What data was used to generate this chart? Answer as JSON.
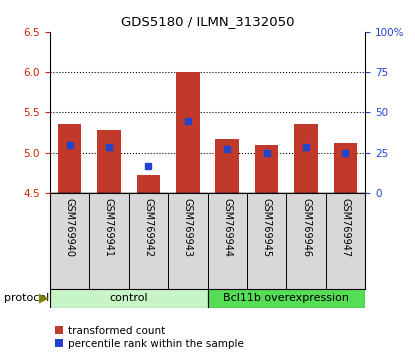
{
  "title": "GDS5180 / ILMN_3132050",
  "samples": [
    "GSM769940",
    "GSM769941",
    "GSM769942",
    "GSM769943",
    "GSM769944",
    "GSM769945",
    "GSM769946",
    "GSM769947"
  ],
  "red_values": [
    5.35,
    5.28,
    4.72,
    6.0,
    5.17,
    5.09,
    5.35,
    5.12
  ],
  "blue_values": [
    5.1,
    5.07,
    4.84,
    5.39,
    5.04,
    4.99,
    5.07,
    5.0
  ],
  "ylim_left": [
    4.5,
    6.5
  ],
  "ylim_right": [
    0,
    100
  ],
  "yticks_left": [
    4.5,
    5.0,
    5.5,
    6.0,
    6.5
  ],
  "yticks_right": [
    0,
    25,
    50,
    75,
    100
  ],
  "ytick_labels_right": [
    "0",
    "25",
    "50",
    "75",
    "100%"
  ],
  "grid_lines": [
    5.0,
    5.5,
    6.0
  ],
  "bar_color": "#c0392b",
  "dot_color": "#2244cc",
  "bar_bottom": 4.5,
  "bar_width": 0.6,
  "control_label": "control",
  "overexpression_label": "Bcl11b overexpression",
  "protocol_label": "protocol",
  "control_color": "#c8f5c8",
  "overexpression_color": "#55dd55",
  "legend_red_label": "transformed count",
  "legend_blue_label": "percentile rank within the sample",
  "left_tick_color": "#cc2200",
  "right_tick_color": "#2244cc"
}
